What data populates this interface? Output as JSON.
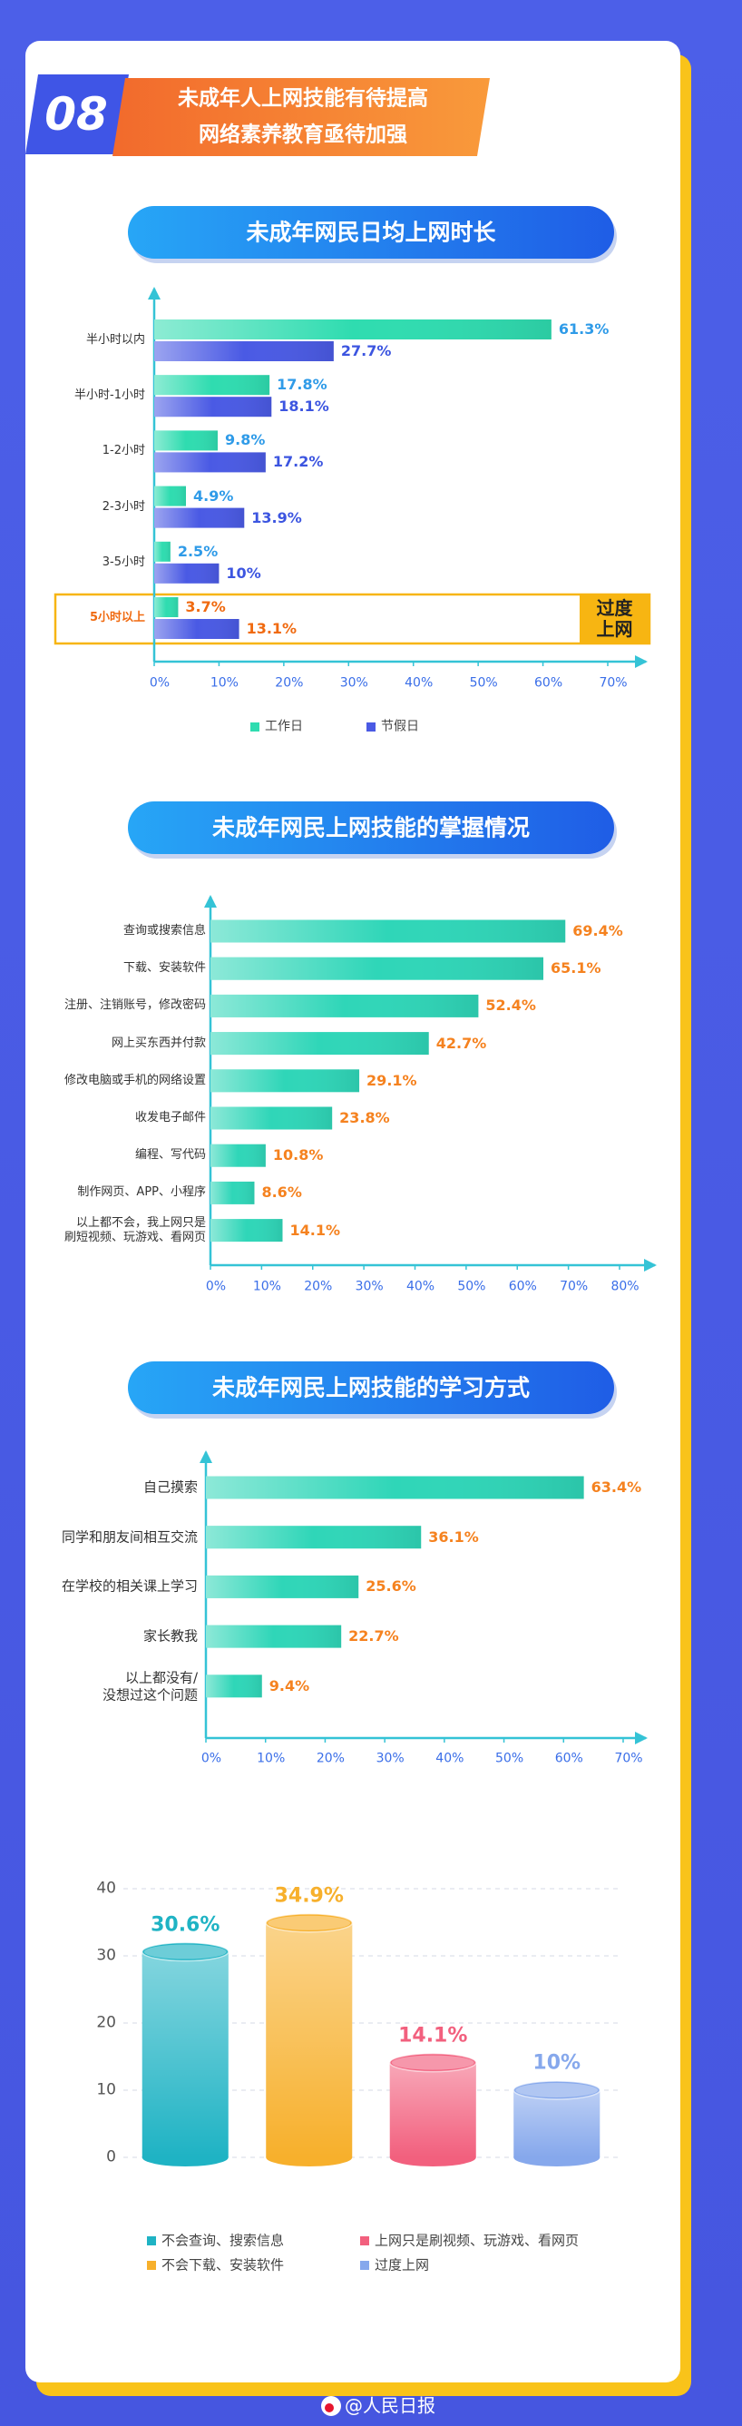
{
  "header": {
    "number": "08",
    "title_lines": [
      "未成年人上网技能有待提高",
      "网络素养教育亟待加强"
    ]
  },
  "chart_data": [
    {
      "type": "bar",
      "horizontal": true,
      "title": "未成年网民日均上网时长",
      "categories": [
        "半小时以内",
        "半小时-1小时",
        "1-2小时",
        "2-3小时",
        "3-5小时",
        "5小时以上"
      ],
      "series": [
        {
          "name": "工作日",
          "color": "#2fdcb0",
          "label_color": "#2f9be8",
          "values": [
            61.3,
            17.8,
            9.8,
            4.9,
            2.5,
            3.7
          ],
          "value_labels": [
            "61.3%",
            "17.8%",
            "9.8%",
            "4.9%",
            "2.5%",
            "3.7%"
          ]
        },
        {
          "name": "节假日",
          "color": "#4a5ae4",
          "label_color": "#3c55e0",
          "values": [
            27.7,
            18.1,
            17.2,
            13.9,
            10,
            13.1
          ],
          "value_labels": [
            "27.7%",
            "18.1%",
            "17.2%",
            "13.9%",
            "10%",
            "13.1%"
          ]
        }
      ],
      "xlim": [
        0,
        70
      ],
      "xticks": [
        {
          "value": 0,
          "label": "0%"
        },
        {
          "value": 10,
          "label": "10%"
        },
        {
          "value": 20,
          "label": "20%"
        },
        {
          "value": 30,
          "label": "30%"
        },
        {
          "value": 40,
          "label": "40%"
        },
        {
          "value": 50,
          "label": "50%"
        },
        {
          "value": 60,
          "label": "60%"
        },
        {
          "value": 70,
          "label": "70%"
        }
      ],
      "highlight": {
        "index": 5,
        "label": "过度上网",
        "color": "#f7b512"
      },
      "legend": "bottom"
    },
    {
      "type": "bar",
      "horizontal": true,
      "title": "未成年网民上网技能的掌握情况",
      "categories": [
        "查询或搜索信息",
        "下载、安装软件",
        "注册、注销账号，修改密码",
        "网上买东西并付款",
        "修改电脑或手机的网络设置",
        "收发电子邮件",
        "编程、写代码",
        "制作网页、APP、小程序",
        "以上都不会，我上网只是\n刷短视频、玩游戏、看网页"
      ],
      "color": "#2fd6b8",
      "label_color": "#f5821f",
      "values": [
        69.4,
        65.1,
        52.4,
        42.7,
        29.1,
        23.8,
        10.8,
        8.6,
        14.1
      ],
      "value_labels": [
        "69.4%",
        "65.1%",
        "52.4%",
        "42.7%",
        "29.1%",
        "23.8%",
        "10.8%",
        "8.6%",
        "14.1%"
      ],
      "xlim": [
        0,
        80
      ],
      "xticks": [
        {
          "value": 0,
          "label": "0%"
        },
        {
          "value": 10,
          "label": "10%"
        },
        {
          "value": 20,
          "label": "20%"
        },
        {
          "value": 30,
          "label": "30%"
        },
        {
          "value": 40,
          "label": "40%"
        },
        {
          "value": 50,
          "label": "50%"
        },
        {
          "value": 60,
          "label": "60%"
        },
        {
          "value": 70,
          "label": "70%"
        },
        {
          "value": 80,
          "label": "80%"
        }
      ]
    },
    {
      "type": "bar",
      "horizontal": true,
      "title": "未成年网民上网技能的学习方式",
      "categories": [
        "自己摸索",
        "同学和朋友间相互交流",
        "在学校的相关课上学习",
        "家长教我",
        "以上都没有/\n没想过这个问题"
      ],
      "color": "#2fd6b8",
      "label_color": "#f5821f",
      "values": [
        63.4,
        36.1,
        25.6,
        22.7,
        9.4
      ],
      "value_labels": [
        "63.4%",
        "36.1%",
        "25.6%",
        "22.7%",
        "9.4%"
      ],
      "xlim": [
        0,
        70
      ],
      "xticks": [
        {
          "value": 0,
          "label": "0%"
        },
        {
          "value": 10,
          "label": "10%"
        },
        {
          "value": 20,
          "label": "20%"
        },
        {
          "value": 30,
          "label": "30%"
        },
        {
          "value": 40,
          "label": "40%"
        },
        {
          "value": 50,
          "label": "50%"
        },
        {
          "value": 60,
          "label": "60%"
        },
        {
          "value": 70,
          "label": "70%"
        }
      ]
    },
    {
      "type": "bar",
      "style": "cylinder",
      "categories": [
        "不会查询、搜索信息",
        "不会下载、安装软件",
        "上网只是刷视频、玩游戏、看网页",
        "过度上网"
      ],
      "colors": [
        "#1fb3c4",
        "#f7b02c",
        "#f2607e",
        "#86a8ec"
      ],
      "values": [
        30.6,
        34.9,
        14.1,
        10
      ],
      "value_labels": [
        "30.6%",
        "34.9%",
        "14.1%",
        "10%"
      ],
      "ylim": [
        0,
        40
      ],
      "yticks": [
        0,
        10,
        20,
        30,
        40
      ],
      "grid": true,
      "legend": "bottom"
    }
  ],
  "footer": {
    "credit": "@人民日报"
  }
}
